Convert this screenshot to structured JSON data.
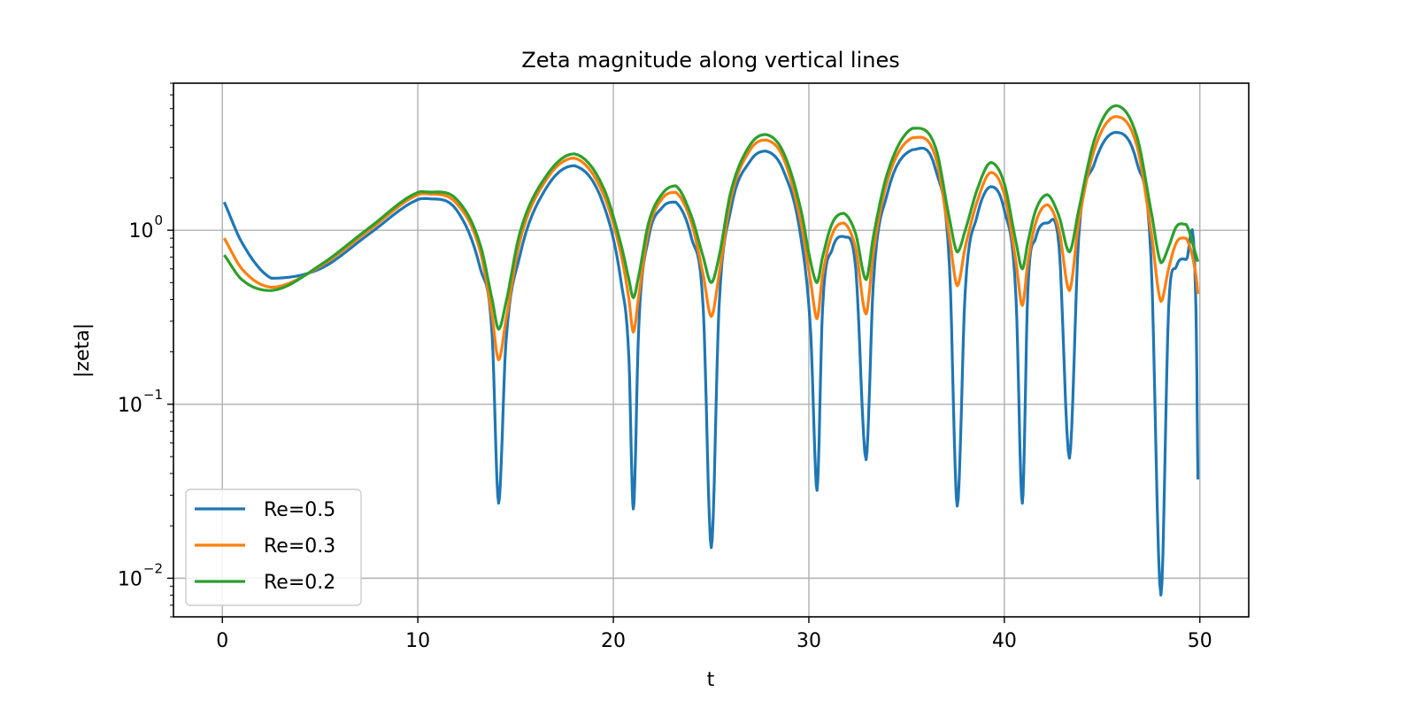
{
  "chart_data": {
    "type": "line",
    "title": "Zeta magnitude along vertical lines",
    "xlabel": "t",
    "ylabel": "|zeta|",
    "xlim": [
      -2.5,
      52.5
    ],
    "ylim": [
      0.006,
      7.0
    ],
    "yscale": "log",
    "grid": true,
    "legend_position": "lower-left",
    "xticks": [
      {
        "value": 0,
        "label": "0"
      },
      {
        "value": 10,
        "label": "10"
      },
      {
        "value": 20,
        "label": "20"
      },
      {
        "value": 30,
        "label": "30"
      },
      {
        "value": 40,
        "label": "40"
      },
      {
        "value": 50,
        "label": "50"
      }
    ],
    "yticks": [
      {
        "value": 0.01,
        "base": "10",
        "exp": "−2"
      },
      {
        "value": 0.1,
        "base": "10",
        "exp": "−1"
      },
      {
        "value": 1,
        "base": "10",
        "exp": "0"
      }
    ],
    "series": [
      {
        "name": "Re=0.5",
        "color": "#1f77b4",
        "x": [
          0.1,
          1.0,
          2.5,
          5.0,
          7.5,
          10.0,
          10.5,
          12.0,
          13.2,
          13.8,
          14.13,
          14.5,
          15.2,
          16.5,
          18.0,
          19.5,
          20.4,
          20.8,
          21.02,
          21.3,
          21.8,
          22.5,
          23.2,
          24.0,
          24.6,
          25.01,
          25.4,
          26.0,
          27.0,
          27.8,
          28.7,
          29.6,
          30.1,
          30.42,
          30.7,
          31.2,
          31.8,
          32.4,
          32.93,
          33.3,
          34.0,
          35.3,
          36.5,
          37.2,
          37.59,
          38.0,
          38.6,
          39.3,
          40.0,
          40.6,
          40.92,
          41.2,
          41.6,
          42.2,
          42.8,
          43.33,
          43.8,
          44.6,
          45.7,
          46.8,
          47.5,
          48.01,
          48.4,
          48.8,
          49.3,
          49.8,
          49.9
        ],
        "y": [
          1.45,
          0.85,
          0.53,
          0.6,
          0.95,
          1.5,
          1.52,
          1.3,
          0.6,
          0.25,
          0.027,
          0.22,
          0.7,
          1.7,
          2.35,
          1.4,
          0.5,
          0.18,
          0.025,
          0.28,
          0.9,
          1.35,
          1.45,
          0.9,
          0.35,
          0.015,
          0.35,
          1.3,
          2.5,
          2.85,
          2.2,
          0.9,
          0.25,
          0.032,
          0.35,
          0.78,
          0.92,
          0.6,
          0.048,
          0.5,
          1.6,
          2.9,
          2.2,
          0.6,
          0.026,
          0.45,
          1.2,
          1.78,
          1.3,
          0.4,
          0.027,
          0.45,
          0.9,
          1.1,
          0.8,
          0.049,
          0.9,
          2.4,
          3.65,
          2.4,
          0.7,
          0.008,
          0.35,
          0.62,
          0.68,
          0.35,
          0.037
        ]
      },
      {
        "name": "Re=0.3",
        "color": "#ff7f0e",
        "x": [
          0.1,
          1.0,
          2.5,
          5.0,
          7.5,
          10.0,
          10.5,
          12.0,
          13.2,
          13.8,
          14.13,
          14.5,
          15.2,
          16.5,
          18.0,
          19.5,
          20.4,
          20.8,
          21.02,
          21.3,
          21.8,
          22.5,
          23.2,
          24.0,
          24.6,
          25.01,
          25.4,
          26.0,
          27.0,
          27.8,
          28.7,
          29.6,
          30.1,
          30.42,
          30.7,
          31.2,
          31.8,
          32.4,
          32.93,
          33.3,
          34.0,
          35.3,
          36.5,
          37.2,
          37.59,
          38.0,
          38.6,
          39.3,
          40.0,
          40.6,
          40.92,
          41.2,
          41.6,
          42.2,
          42.8,
          43.33,
          43.8,
          44.6,
          45.7,
          46.8,
          47.5,
          48.01,
          48.4,
          48.8,
          49.3,
          49.8,
          49.9
        ],
        "y": [
          0.9,
          0.6,
          0.47,
          0.62,
          1.0,
          1.6,
          1.62,
          1.42,
          0.75,
          0.32,
          0.18,
          0.3,
          0.85,
          1.9,
          2.6,
          1.6,
          0.72,
          0.4,
          0.26,
          0.42,
          1.0,
          1.52,
          1.65,
          1.1,
          0.55,
          0.32,
          0.55,
          1.5,
          2.9,
          3.3,
          2.6,
          1.1,
          0.5,
          0.31,
          0.55,
          0.95,
          1.1,
          0.78,
          0.33,
          0.75,
          1.9,
          3.4,
          2.6,
          0.9,
          0.48,
          0.8,
          1.45,
          2.15,
          1.6,
          0.65,
          0.37,
          0.65,
          1.1,
          1.4,
          1.0,
          0.45,
          1.1,
          2.9,
          4.5,
          3.0,
          1.0,
          0.39,
          0.6,
          0.85,
          0.9,
          0.55,
          0.43
        ]
      },
      {
        "name": "Re=0.2",
        "color": "#2ca02c",
        "x": [
          0.1,
          1.0,
          2.5,
          5.0,
          7.5,
          10.0,
          10.5,
          12.0,
          13.2,
          13.8,
          14.13,
          14.5,
          15.2,
          16.5,
          18.0,
          19.5,
          20.4,
          20.8,
          21.02,
          21.3,
          21.8,
          22.5,
          23.2,
          24.0,
          24.6,
          25.01,
          25.4,
          26.0,
          27.0,
          27.8,
          28.7,
          29.6,
          30.1,
          30.42,
          30.7,
          31.2,
          31.8,
          32.4,
          32.93,
          33.3,
          34.0,
          35.3,
          36.5,
          37.2,
          37.59,
          38.0,
          38.6,
          39.3,
          40.0,
          40.6,
          40.92,
          41.2,
          41.6,
          42.2,
          42.8,
          43.33,
          43.8,
          44.6,
          45.7,
          46.8,
          47.5,
          48.01,
          48.4,
          48.8,
          49.3,
          49.8,
          49.9
        ],
        "y": [
          0.72,
          0.52,
          0.45,
          0.63,
          1.03,
          1.65,
          1.66,
          1.5,
          0.82,
          0.4,
          0.27,
          0.38,
          0.95,
          2.0,
          2.75,
          1.75,
          0.82,
          0.52,
          0.41,
          0.55,
          1.1,
          1.62,
          1.8,
          1.2,
          0.7,
          0.5,
          0.7,
          1.65,
          3.1,
          3.55,
          2.8,
          1.3,
          0.65,
          0.5,
          0.7,
          1.1,
          1.25,
          0.95,
          0.52,
          0.92,
          2.1,
          3.85,
          2.95,
          1.15,
          0.75,
          1.0,
          1.7,
          2.45,
          1.85,
          0.85,
          0.6,
          0.85,
          1.3,
          1.6,
          1.2,
          0.75,
          1.3,
          3.3,
          5.2,
          3.4,
          1.3,
          0.65,
          0.8,
          1.05,
          1.08,
          0.72,
          0.66
        ]
      }
    ]
  }
}
